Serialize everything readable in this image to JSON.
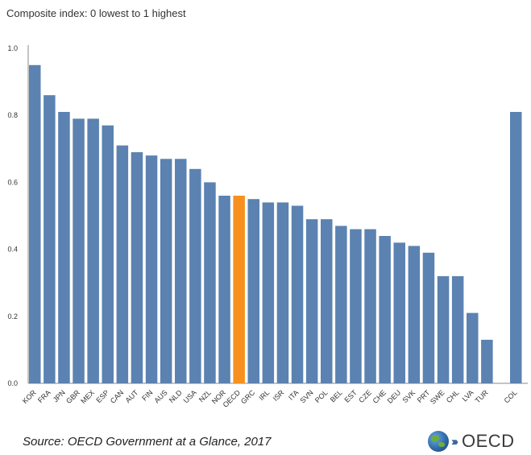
{
  "chart_data": {
    "type": "bar",
    "subtitle": "Composite index: 0 lowest to 1 highest",
    "title": "",
    "xlabel": "",
    "ylabel": "",
    "ylim": [
      0,
      1
    ],
    "yticks": [
      "0.0",
      "0.2",
      "0.4",
      "0.6",
      "0.8",
      "1.0"
    ],
    "grid": false,
    "categories": [
      "KOR",
      "FRA",
      "JPN",
      "GBR",
      "MEX",
      "ESP",
      "CAN",
      "AUT",
      "FIN",
      "AUS",
      "NLD",
      "USA",
      "NZL",
      "NOR",
      "OECD",
      "GRC",
      "IRL",
      "ISR",
      "ITA",
      "SVN",
      "POL",
      "BEL",
      "EST",
      "CZE",
      "CHE",
      "DEU",
      "SVK",
      "PRT",
      "SWE",
      "CHL",
      "LVA",
      "TUR",
      "COL"
    ],
    "values": [
      0.95,
      0.86,
      0.81,
      0.79,
      0.79,
      0.77,
      0.71,
      0.69,
      0.68,
      0.67,
      0.67,
      0.64,
      0.6,
      0.56,
      0.56,
      0.55,
      0.54,
      0.54,
      0.53,
      0.49,
      0.49,
      0.47,
      0.46,
      0.46,
      0.44,
      0.42,
      0.41,
      0.39,
      0.32,
      0.32,
      0.21,
      0.13,
      0.81
    ],
    "highlight": "OECD",
    "colors": {
      "bar": "#5b82b1",
      "highlight": "#f7901e",
      "axis": "#888888"
    }
  },
  "footer": {
    "source": "Source: OECD Government at a Glance, 2017",
    "logo_text": "OECD",
    "logo_chevrons": "›››"
  }
}
